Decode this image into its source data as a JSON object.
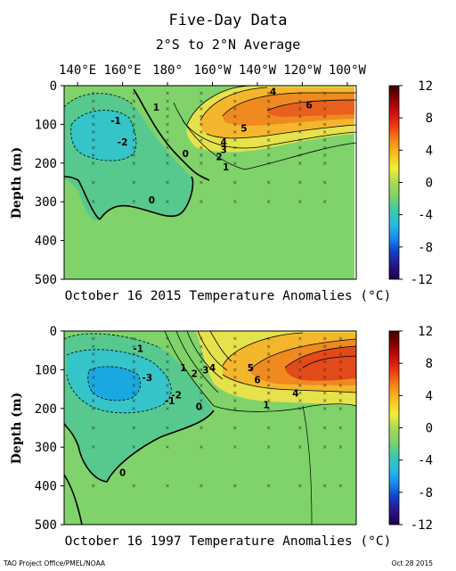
{
  "header": {
    "title": "Five-Day Data",
    "subtitle": "2°S to 2°N Average"
  },
  "footer": {
    "left": "TAO Project Office/PMEL/NOAA",
    "right": "Oct 28 2015"
  },
  "colors": {
    "bg_anomaly_zero": "#7fd36a",
    "negative_light": "#57c98f",
    "negative_mid": "#35c4c8",
    "negative_deep": "#1aa8e0",
    "positive_light": "#e5e24c",
    "positive_mid": "#f4b62c",
    "positive_high": "#ef8a20",
    "positive_peak": "#d94a1e",
    "colorbar_stops": [
      "#3a0000",
      "#8b0000",
      "#d01010",
      "#f04010",
      "#f58a1a",
      "#f8c21f",
      "#f3ee3a",
      "#a6dc55",
      "#7fd36a",
      "#3fc9a8",
      "#2bbce0",
      "#1a8cf0",
      "#1040c8",
      "#2a1488",
      "#1a0050"
    ]
  },
  "chart_data": [
    {
      "type": "heatmap",
      "title": "October 16 2015 Temperature Anomalies (°C)",
      "xlabel": "",
      "ylabel": "Depth (m)",
      "x_ticks": [
        "140°E",
        "160°E",
        "180°",
        "160°W",
        "140°W",
        "120°W",
        "100°W"
      ],
      "x_tick_values": [
        140,
        160,
        180,
        200,
        220,
        240,
        260
      ],
      "xlim": [
        134,
        264
      ],
      "y_ticks": [
        0,
        100,
        200,
        300,
        400,
        500
      ],
      "ylim": [
        500,
        0
      ],
      "colorbar_ticks": [
        12,
        8,
        4,
        0,
        -4,
        -8,
        -12
      ],
      "colorbar_range": [
        -12,
        12
      ],
      "data_coverage_x_max": 254,
      "max_anomaly": 6,
      "min_anomaly": -2,
      "contour_labels": [
        {
          "value": "1",
          "x": 175,
          "depth": 55
        },
        {
          "value": "-1",
          "x": 157,
          "depth": 90
        },
        {
          "value": "-2",
          "x": 160,
          "depth": 145
        },
        {
          "value": "0",
          "x": 188,
          "depth": 175
        },
        {
          "value": "0",
          "x": 173,
          "depth": 295
        },
        {
          "value": "4",
          "x": 227,
          "depth": 15
        },
        {
          "value": "5",
          "x": 214,
          "depth": 110
        },
        {
          "value": "6",
          "x": 243,
          "depth": 50
        },
        {
          "value": "4",
          "x": 205,
          "depth": 145
        },
        {
          "value": "3",
          "x": 205,
          "depth": 165
        },
        {
          "value": "2",
          "x": 203,
          "depth": 183
        },
        {
          "value": "1",
          "x": 206,
          "depth": 210
        }
      ]
    },
    {
      "type": "heatmap",
      "title": "October 16 1997 Temperature Anomalies (°C)",
      "xlabel": "",
      "ylabel": "Depth (m)",
      "x_ticks": [],
      "xlim": [
        134,
        264
      ],
      "y_ticks": [
        0,
        100,
        200,
        300,
        400,
        500
      ],
      "ylim": [
        500,
        0
      ],
      "colorbar_ticks": [
        12,
        8,
        4,
        0,
        -4,
        -8,
        -12
      ],
      "colorbar_range": [
        -12,
        12
      ],
      "max_anomaly": 8,
      "min_anomaly": -4,
      "contour_labels": [
        {
          "value": "-1",
          "x": 167,
          "depth": 45
        },
        {
          "value": "-3",
          "x": 171,
          "depth": 120
        },
        {
          "value": "-1",
          "x": 181,
          "depth": 180
        },
        {
          "value": "-2",
          "x": 184,
          "depth": 165
        },
        {
          "value": "1",
          "x": 187,
          "depth": 95
        },
        {
          "value": "2",
          "x": 192,
          "depth": 110
        },
        {
          "value": "3",
          "x": 197,
          "depth": 100
        },
        {
          "value": "4",
          "x": 200,
          "depth": 95
        },
        {
          "value": "0",
          "x": 194,
          "depth": 195
        },
        {
          "value": "0",
          "x": 160,
          "depth": 365
        },
        {
          "value": "5",
          "x": 217,
          "depth": 95
        },
        {
          "value": "6",
          "x": 220,
          "depth": 125
        },
        {
          "value": "4",
          "x": 237,
          "depth": 160
        },
        {
          "value": "1",
          "x": 224,
          "depth": 190
        }
      ]
    }
  ]
}
